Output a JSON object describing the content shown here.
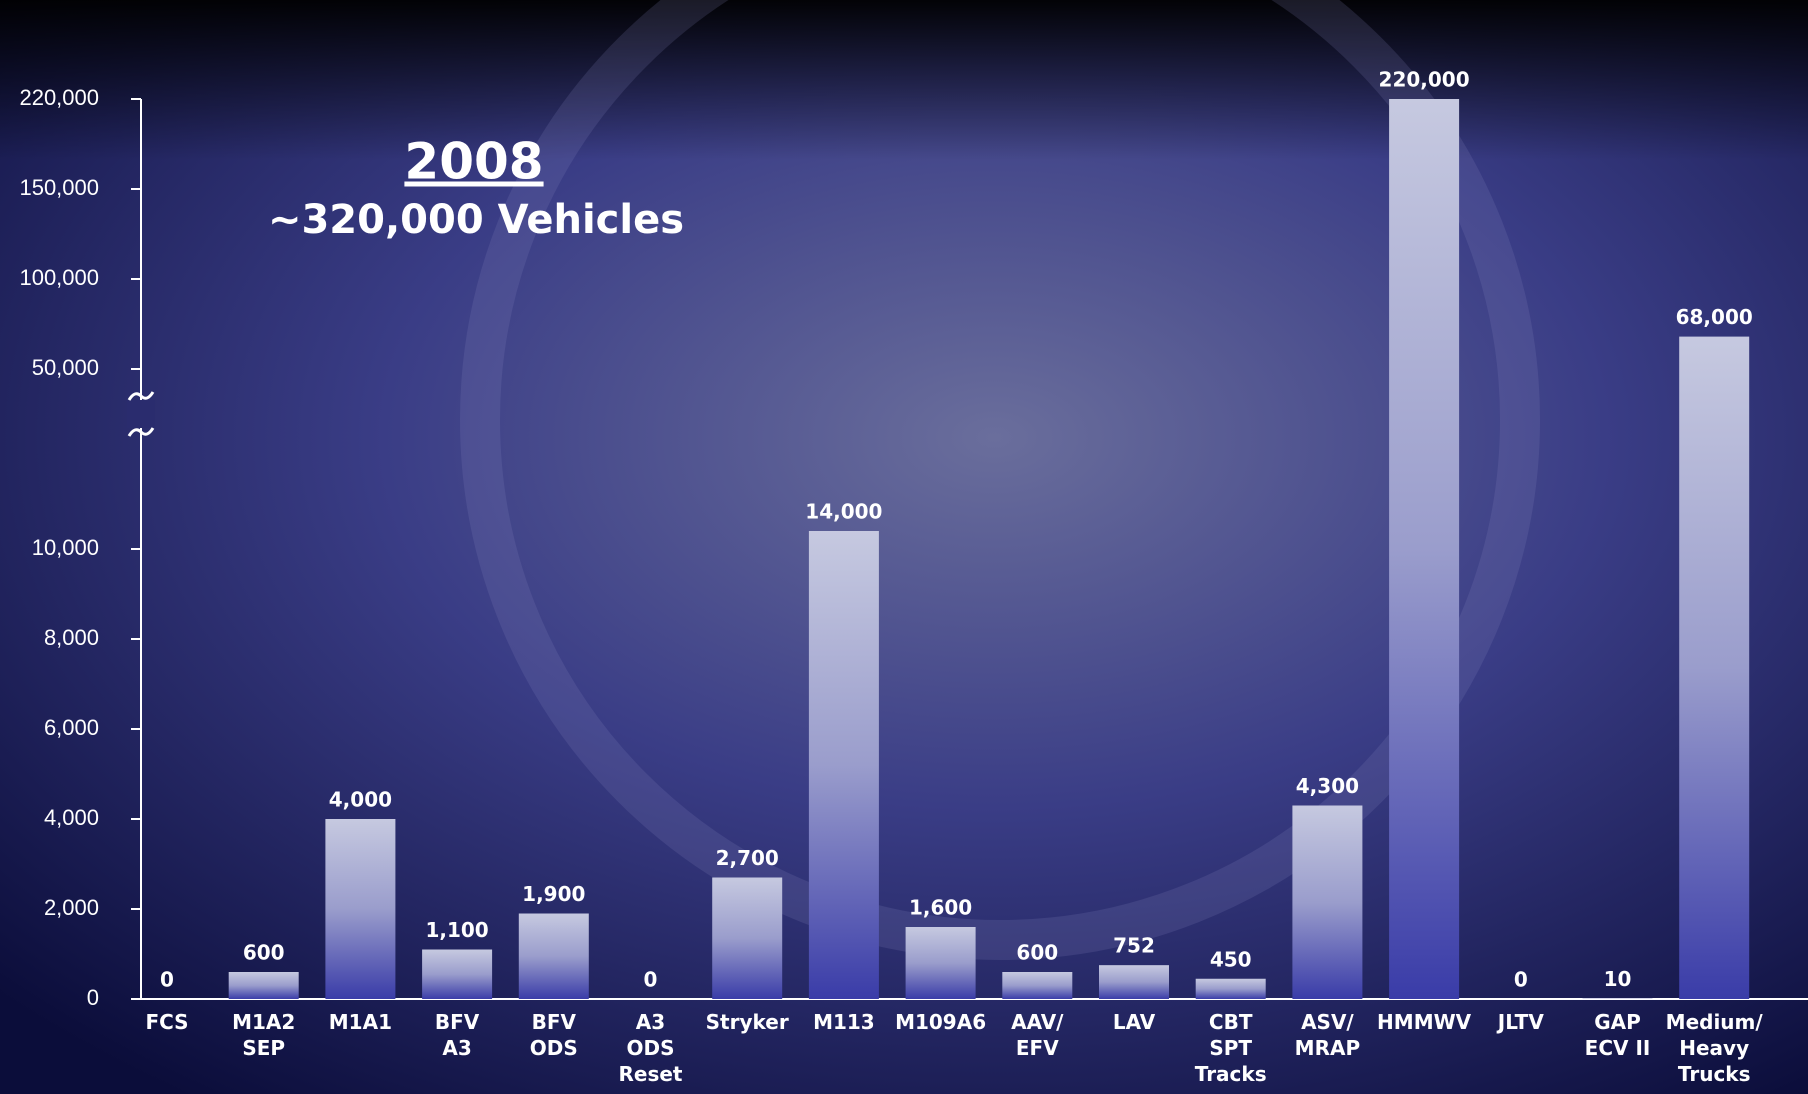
{
  "chart_data": {
    "type": "bar",
    "title": "2008",
    "subtitle": "~320,000 Vehicles",
    "categories": [
      "FCS",
      "M1A2\nSEP",
      "M1A1",
      "BFV\nA3",
      "BFV\nODS",
      "A3\nODS\nReset",
      "Stryker",
      "M113",
      "M109A6",
      "AAV/\nEFV",
      "LAV",
      "CBT\nSPT\nTracks",
      "ASV/\nMRAP",
      "HMMWV",
      "JLTV",
      "GAP\nECV II",
      "Medium/\nHeavy\nTrucks"
    ],
    "values": [
      0,
      600,
      4000,
      1100,
      1900,
      0,
      2700,
      14000,
      1600,
      600,
      752,
      450,
      4300,
      220000,
      0,
      10,
      68000
    ],
    "value_labels": [
      "0",
      "600",
      "4,000",
      "1,100",
      "1,900",
      "0",
      "2,700",
      "14,000",
      "1,600",
      "600",
      "752",
      "450",
      "4,300",
      "220,000",
      "0",
      "10",
      "68,000"
    ],
    "color": "#3a3ca8",
    "ylim": [
      0,
      220000
    ],
    "yticks": [
      0,
      {
        "value": 2000,
        "label": "2,000"
      },
      {
        "value": 4000,
        "label": "4,000"
      },
      {
        "value": 6000,
        "label": "6,000"
      },
      {
        "value": 8000,
        "label": "8,000"
      },
      {
        "value": 10000,
        "label": "10,000"
      },
      {
        "value": 50000,
        "label": "50,000"
      },
      {
        "value": 100000,
        "label": "100,000"
      },
      {
        "value": 150000,
        "label": "150,000"
      },
      {
        "value": 220000,
        "label": "220,000"
      }
    ]
  }
}
